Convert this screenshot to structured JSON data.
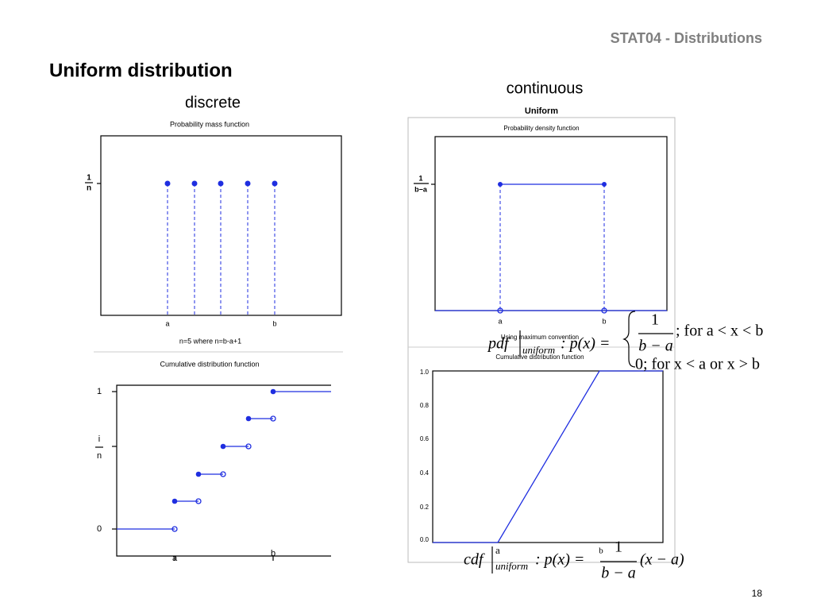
{
  "header": {
    "course": "STAT04 - Distributions",
    "title": "Uniform distribution"
  },
  "discrete": {
    "label": "discrete",
    "pmf": {
      "title": "Probability mass function",
      "y_label_num": "1",
      "y_label_den": "n",
      "x_labels": [
        "a",
        "b"
      ],
      "caption": "n=5 where n=b-a+1"
    },
    "cdf": {
      "title": "Cumulative distribution function",
      "y_labels": [
        "1",
        "0"
      ],
      "y_mid_num": "i",
      "y_mid_den": "n",
      "x_labels": [
        "a",
        "b"
      ]
    }
  },
  "continuous": {
    "label": "continuous",
    "heading": "Uniform",
    "pdf": {
      "title": "Probability density function",
      "y_label_num": "1",
      "y_label_den": "b−a",
      "x_labels": [
        "a",
        "b"
      ],
      "caption": "Using maximum convention"
    },
    "cdf": {
      "title": "Cumulative distribution function",
      "yticks": [
        "1.0",
        "0.8",
        "0.6",
        "0.4",
        "0.2",
        "0.0"
      ]
    }
  },
  "formulas": {
    "pdf": {
      "name": "pdf",
      "sub": "uniform",
      "lhs": ": p(x) =",
      "num": "1",
      "den": "b − a",
      "case1": "; for a < x < b",
      "case2": "0; for x < a or x > b"
    },
    "cdf": {
      "name": "cdf",
      "sup": "a",
      "sub": "uniform",
      "b": "b",
      "lhs": ": p(x) =",
      "num": "1",
      "den": "b − a",
      "rhs": "(x − a)"
    }
  },
  "page_number": "18"
}
